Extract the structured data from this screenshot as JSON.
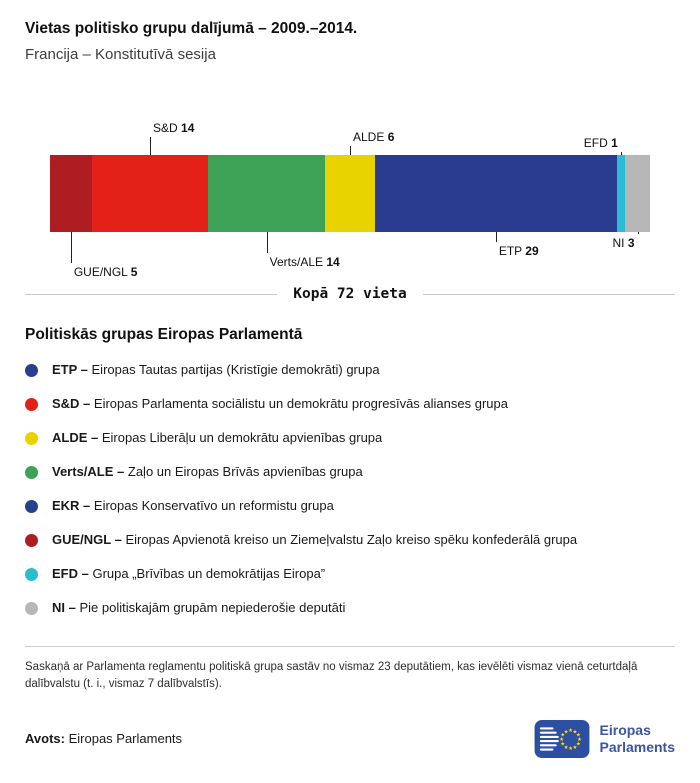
{
  "header": {
    "title": "Vietas politisko grupu dalījumā – 2009.–2014.",
    "subtitle": "Francija – Konstitutīvā sesija"
  },
  "chart_data": {
    "type": "bar",
    "orientation": "horizontal-stacked",
    "title": "Vietas politisko grupu dalījumā – 2009.–2014.",
    "subtitle": "Francija – Konstitutīvā sesija",
    "categories": [
      "GUE/NGL",
      "S&D",
      "Verts/ALE",
      "ALDE",
      "ETP",
      "EFD",
      "NI"
    ],
    "values": [
      5,
      14,
      14,
      6,
      29,
      1,
      3
    ],
    "colors": [
      "#ad1d21",
      "#e32119",
      "#3ea256",
      "#e8d200",
      "#2a3c8f",
      "#2bbcd4",
      "#b7b7b7"
    ],
    "total": 72,
    "total_label": "Kopā 72 vieta"
  },
  "legend": {
    "title": "Politiskās grupas Eiropas Parlamentā",
    "items": [
      {
        "abbr": "ETP –",
        "desc": "Eiropas Tautas partijas (Kristīgie demokrāti) grupa",
        "color": "#2a3c8f"
      },
      {
        "abbr": "S&D –",
        "desc": "Eiropas Parlamenta sociālistu un demokrātu progresīvās alianses grupa",
        "color": "#e32119"
      },
      {
        "abbr": "ALDE –",
        "desc": "Eiropas Liberāļu un demokrātu apvienības grupa",
        "color": "#e8d200"
      },
      {
        "abbr": "Verts/ALE –",
        "desc": "Zaļo un Eiropas Brīvās apvienības grupa",
        "color": "#3ea256"
      },
      {
        "abbr": "EKR –",
        "desc": "Eiropas Konservatīvo un reformistu grupa",
        "color": "#23418d"
      },
      {
        "abbr": "GUE/NGL –",
        "desc": "Eiropas Apvienotā kreiso un Ziemeļvalstu Zaļo kreiso spēku konfederālā grupa",
        "color": "#ad1d21"
      },
      {
        "abbr": "EFD –",
        "desc": "Grupa „Brīvības un demokrātijas Eiropa”",
        "color": "#2bbcd4"
      },
      {
        "abbr": "NI –",
        "desc": "Pie politiskajām grupām nepiederošie deputāti",
        "color": "#b7b7b7"
      }
    ]
  },
  "footer": {
    "note": "Saskaņā ar Parlamenta reglamentu politiskā grupa sastāv no vismaz 23 deputātiem, kas ievēlēti vismaz vienā ceturtdaļā dalībvalstu (t. i., vismaz 7 dalībvalstīs).",
    "source_label": "Avots:",
    "source": "Eiropas Parlaments",
    "logo": {
      "line1": "Eiropas",
      "line2": "Parlaments"
    }
  }
}
